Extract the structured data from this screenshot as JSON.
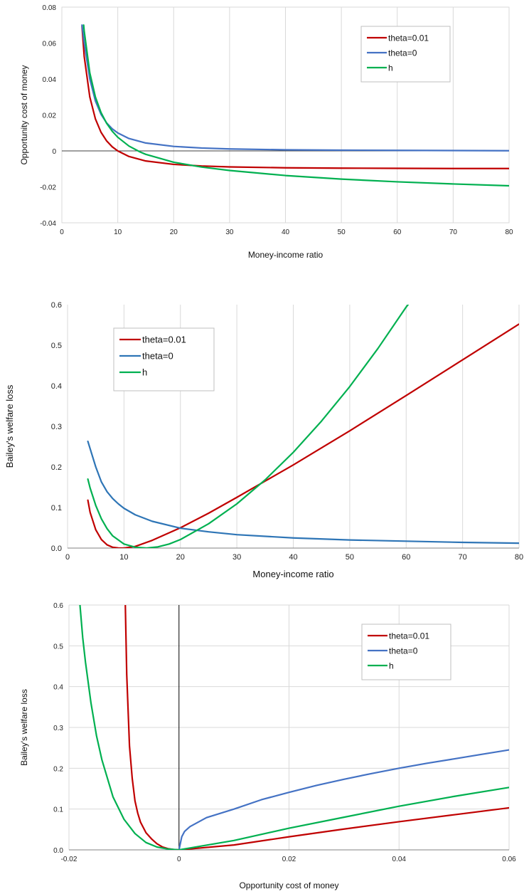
{
  "chart_data": [
    {
      "type": "line",
      "xlabel": "Money-income ratio",
      "ylabel": "Opportunity cost of money",
      "xlim": [
        0,
        80
      ],
      "ylim": [
        -0.04,
        0.08
      ],
      "xticks": [
        "0",
        "10",
        "20",
        "30",
        "40",
        "50",
        "60",
        "70",
        "80"
      ],
      "yticks": [
        "-0.04",
        "-0.02",
        "0",
        "0.02",
        "0.04",
        "0.06",
        "0.08"
      ],
      "grid": "vertical",
      "legend_position": "top-right",
      "series": [
        {
          "name": "theta=0.01",
          "color": "#C00000",
          "x": [
            3.6,
            4,
            5,
            6,
            7,
            8,
            9,
            10,
            12,
            15,
            20,
            25,
            30,
            40,
            50,
            60,
            70,
            80
          ],
          "y": [
            0.0694,
            0.0525,
            0.03,
            0.0178,
            0.0104,
            0.0056,
            0.0023,
            0.0,
            -0.0031,
            -0.0056,
            -0.0075,
            -0.0084,
            -0.0089,
            -0.0094,
            -0.0096,
            -0.0097,
            -0.0098,
            -0.0098
          ]
        },
        {
          "name": "theta=0",
          "color": "#4472C4",
          "x": [
            3.6,
            4,
            5,
            6,
            7,
            8,
            9,
            10,
            12,
            15,
            20,
            25,
            30,
            40,
            50,
            60,
            70,
            80
          ],
          "y": [
            0.07,
            0.06,
            0.04,
            0.0278,
            0.0204,
            0.0156,
            0.0123,
            0.01,
            0.0069,
            0.0044,
            0.0025,
            0.0016,
            0.0011,
            0.0006,
            0.0004,
            0.0003,
            0.0002,
            0.0001
          ]
        },
        {
          "name": "h",
          "color": "#00B050",
          "x": [
            3.9,
            4,
            5,
            6,
            7,
            8,
            9,
            10,
            12,
            14,
            15,
            20,
            25,
            30,
            40,
            50,
            60,
            70,
            80
          ],
          "y": [
            0.07,
            0.0666,
            0.0434,
            0.03,
            0.0214,
            0.0154,
            0.011,
            0.0076,
            0.0027,
            -0.0006,
            -0.0019,
            -0.0063,
            -0.009,
            -0.0109,
            -0.0137,
            -0.0157,
            -0.0172,
            -0.0184,
            -0.0194
          ]
        }
      ]
    },
    {
      "type": "line",
      "xlabel": "Money-income ratio",
      "ylabel": "Bailey's welfare loss",
      "xlim": [
        0,
        80
      ],
      "ylim": [
        0,
        0.6
      ],
      "xticks": [
        "0",
        "10",
        "20",
        "30",
        "40",
        "50",
        "60",
        "70",
        "80"
      ],
      "yticks": [
        "0.0",
        "0.1",
        "0.2",
        "0.3",
        "0.4",
        "0.5",
        "0.6"
      ],
      "grid": "vertical",
      "legend_position": "top-left",
      "series": [
        {
          "name": "theta=0.01",
          "color": "#C00000",
          "x": [
            3.6,
            4,
            5,
            6,
            7,
            8,
            9,
            10,
            12,
            15,
            20,
            25,
            30,
            35,
            40,
            50,
            60,
            70,
            80
          ],
          "y": [
            0.118,
            0.088,
            0.045,
            0.021,
            0.008,
            0.002,
            0.0003,
            0.0,
            0.004,
            0.019,
            0.05,
            0.086,
            0.125,
            0.165,
            0.205,
            0.289,
            0.376,
            0.464,
            0.552
          ]
        },
        {
          "name": "theta=0",
          "color": "#2E75B6",
          "x": [
            3.6,
            4,
            5,
            6,
            7,
            8,
            9,
            10,
            12,
            15,
            20,
            25,
            30,
            40,
            50,
            60,
            70,
            80
          ],
          "y": [
            0.263,
            0.245,
            0.2,
            0.163,
            0.139,
            0.122,
            0.109,
            0.098,
            0.082,
            0.066,
            0.049,
            0.04,
            0.033,
            0.025,
            0.02,
            0.017,
            0.014,
            0.012
          ]
        },
        {
          "name": "h",
          "color": "#00B050",
          "x": [
            3.6,
            4,
            5,
            6,
            7,
            8,
            10,
            12,
            14,
            16,
            18,
            20,
            25,
            30,
            35,
            40,
            45,
            50,
            55,
            60,
            62
          ],
          "y": [
            0.17,
            0.148,
            0.105,
            0.072,
            0.048,
            0.03,
            0.01,
            0.002,
            0.0,
            0.003,
            0.01,
            0.021,
            0.06,
            0.109,
            0.168,
            0.236,
            0.313,
            0.398,
            0.492,
            0.594,
            0.63
          ]
        }
      ]
    },
    {
      "type": "line",
      "xlabel": "Opportunity cost of money",
      "ylabel": "Bailey's welfare loss",
      "xlim": [
        -0.02,
        0.06
      ],
      "ylim": [
        0,
        0.6
      ],
      "xticks": [
        "-0.02",
        "0",
        "0.02",
        "0.04",
        "0.06"
      ],
      "yticks": [
        "0.0",
        "0.1",
        "0.2",
        "0.3",
        "0.4",
        "0.5",
        "0.6"
      ],
      "grid": "both",
      "legend_position": "top-right",
      "series": [
        {
          "name": "theta=0.01",
          "color": "#C00000",
          "x": [
            -0.0098,
            -0.0095,
            -0.009,
            -0.0085,
            -0.008,
            -0.0075,
            -0.007,
            -0.006,
            -0.005,
            -0.004,
            -0.003,
            -0.002,
            -0.001,
            0.0,
            0.01,
            0.02,
            0.03,
            0.04,
            0.05,
            0.06
          ],
          "y": [
            0.63,
            0.43,
            0.255,
            0.175,
            0.12,
            0.09,
            0.068,
            0.042,
            0.027,
            0.015,
            0.007,
            0.003,
            0.001,
            0.0,
            0.012,
            0.032,
            0.051,
            0.069,
            0.086,
            0.103
          ]
        },
        {
          "name": "theta=0",
          "color": "#4472C4",
          "x": [
            0.0,
            0.0005,
            0.001,
            0.002,
            0.005,
            0.01,
            0.015,
            0.02,
            0.025,
            0.03,
            0.035,
            0.04,
            0.045,
            0.05,
            0.055,
            0.06
          ],
          "y": [
            0.0,
            0.032,
            0.045,
            0.057,
            0.079,
            0.1,
            0.123,
            0.141,
            0.158,
            0.173,
            0.187,
            0.2,
            0.212,
            0.223,
            0.234,
            0.245
          ]
        },
        {
          "name": "h",
          "color": "#00B050",
          "x": [
            -0.0185,
            -0.018,
            -0.0175,
            -0.017,
            -0.016,
            -0.015,
            -0.014,
            -0.012,
            -0.01,
            -0.008,
            -0.006,
            -0.004,
            -0.002,
            0.0,
            0.01,
            0.02,
            0.03,
            0.04,
            0.05,
            0.06
          ],
          "y": [
            0.63,
            0.6,
            0.52,
            0.46,
            0.36,
            0.28,
            0.22,
            0.13,
            0.075,
            0.04,
            0.018,
            0.007,
            0.002,
            0.0,
            0.023,
            0.053,
            0.08,
            0.107,
            0.131,
            0.153
          ]
        }
      ]
    }
  ]
}
